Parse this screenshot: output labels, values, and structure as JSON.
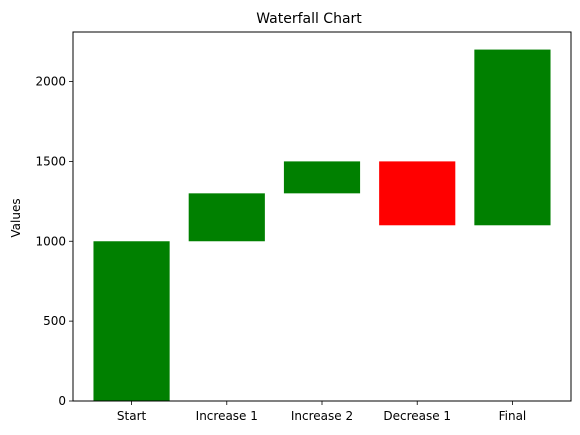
{
  "chart_data": {
    "type": "bar",
    "title": "Waterfall Chart",
    "xlabel": "",
    "ylabel": "Values",
    "categories": [
      "Start",
      "Increase 1",
      "Increase 2",
      "Decrease 1",
      "Final"
    ],
    "bars": [
      {
        "category": "Start",
        "bottom": 0,
        "top": 1000,
        "color": "#008000"
      },
      {
        "category": "Increase 1",
        "bottom": 1000,
        "top": 1300,
        "color": "#008000"
      },
      {
        "category": "Increase 2",
        "bottom": 1300,
        "top": 1500,
        "color": "#008000"
      },
      {
        "category": "Decrease 1",
        "bottom": 1100,
        "top": 1500,
        "color": "#ff0000"
      },
      {
        "category": "Final",
        "bottom": 1100,
        "top": 2200,
        "color": "#008000"
      }
    ],
    "ylim": [
      0,
      2310
    ],
    "yticks": [
      0,
      500,
      1000,
      1500,
      2000
    ],
    "grid": false,
    "legend": "none"
  }
}
